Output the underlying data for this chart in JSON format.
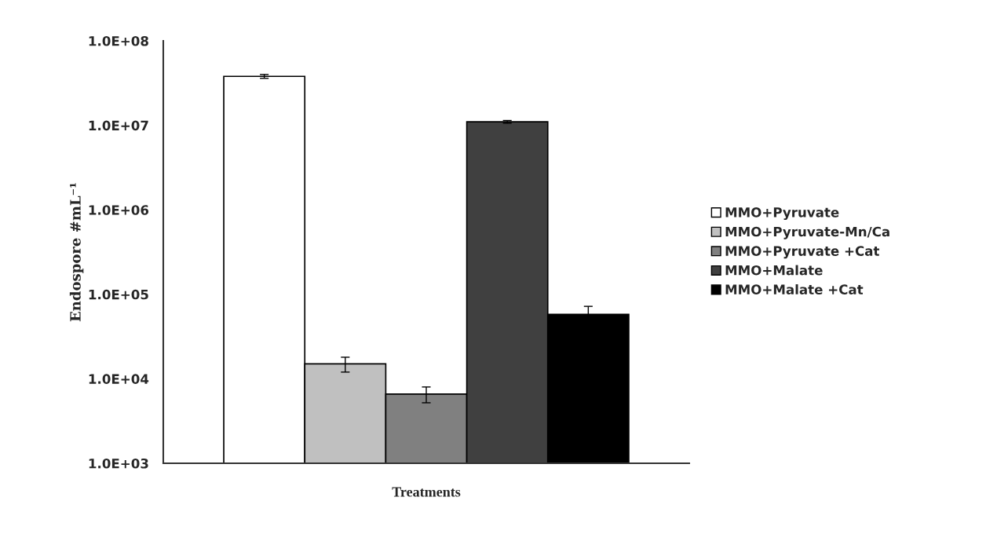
{
  "chart_data": {
    "type": "bar",
    "xlabel": "Treatments",
    "ylabel": "Endospore #mL⁻¹",
    "categories": [
      null
    ],
    "series": [
      {
        "name": "MMO+Pyruvate",
        "color": "#ffffff",
        "values": [
          38000000
        ],
        "errors": [
          2000000
        ]
      },
      {
        "name": "MMO+Pyruvate-Mn/Ca",
        "color": "#c0c0c0",
        "values": [
          15000
        ],
        "errors": [
          3000
        ]
      },
      {
        "name": "MMO+Pyruvate +Cat",
        "color": "#808080",
        "values": [
          6600
        ],
        "errors": [
          1400
        ]
      },
      {
        "name": "MMO+Malate",
        "color": "#404040",
        "values": [
          11000000
        ],
        "errors": [
          400000
        ]
      },
      {
        "name": "MMO+Malate +Cat",
        "color": "#000000",
        "values": [
          58000
        ],
        "errors": [
          14000
        ]
      }
    ],
    "log": "y",
    "ylim": [
      1000,
      100000000
    ],
    "yticks": [
      {
        "value": 1000,
        "label": "1.0E+03"
      },
      {
        "value": 10000,
        "label": "1.0E+04"
      },
      {
        "value": 100000,
        "label": "1.0E+05"
      },
      {
        "value": 1000000,
        "label": "1.0E+06"
      },
      {
        "value": 10000000,
        "label": "1.0E+07"
      },
      {
        "value": 100000000,
        "label": "1.0E+08"
      }
    ],
    "grid": false,
    "legend": "right"
  }
}
